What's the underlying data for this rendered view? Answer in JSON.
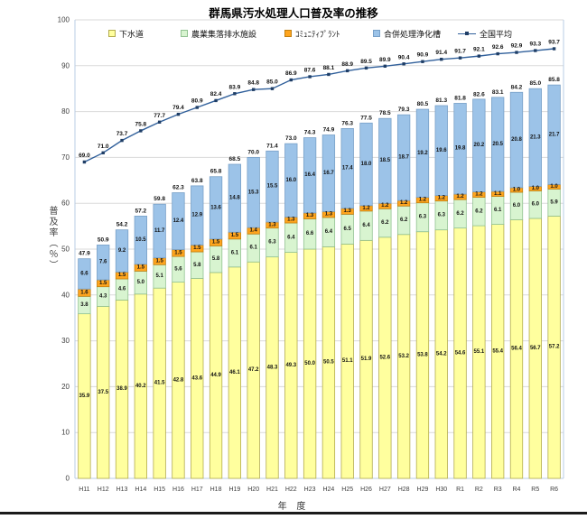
{
  "title": "群馬県汚水処理人口普及率の推移",
  "y_axis": {
    "title": "普及率（％）",
    "ticks": [
      0,
      10,
      20,
      30,
      40,
      50,
      60,
      70,
      80,
      90,
      100
    ]
  },
  "x_axis": {
    "title": "年 度"
  },
  "colors": {
    "grid": "#DADADA",
    "axis": "#B8CCE4",
    "label": "#111111",
    "tick_text": "#404040"
  },
  "chart_data": {
    "type": "bar",
    "subtype": "stacked-bars-with-line",
    "title": "群馬県汚水処理人口普及率の推移",
    "xlabel": "年 度",
    "ylabel": "普及率（％）",
    "ylim": [
      0,
      100
    ],
    "ytick_step": 10,
    "grid": true,
    "legend_position": "top",
    "categories": [
      "H11",
      "H12",
      "H13",
      "H14",
      "H15",
      "H16",
      "H17",
      "H18",
      "H19",
      "H20",
      "H21",
      "H22",
      "H23",
      "H24",
      "H25",
      "H26",
      "H27",
      "H28",
      "H29",
      "H30",
      "R1",
      "R2",
      "R3",
      "R4",
      "R5",
      "R6"
    ],
    "series": [
      {
        "id": "sewerage",
        "name": "下水道",
        "kind": "bar",
        "fill": "#FFFF9E",
        "border": "#B3AC4E",
        "values": [
          35.9,
          37.5,
          38.9,
          40.2,
          41.5,
          42.8,
          43.6,
          44.9,
          46.1,
          47.2,
          48.3,
          49.3,
          50.0,
          50.5,
          51.1,
          51.9,
          52.6,
          53.2,
          53.8,
          54.2,
          54.6,
          55.1,
          55.4,
          56.4,
          56.7,
          57.2
        ]
      },
      {
        "id": "agri-drainage",
        "name": "農業集落排水施設",
        "kind": "bar",
        "fill": "#D8F4D0",
        "border": "#92C292",
        "values": [
          3.8,
          4.3,
          4.6,
          5.0,
          5.1,
          5.6,
          5.8,
          5.8,
          6.1,
          6.1,
          6.3,
          6.4,
          6.6,
          6.4,
          6.5,
          6.4,
          6.2,
          6.2,
          6.3,
          6.3,
          6.2,
          6.2,
          6.1,
          6.0,
          6.0,
          5.9
        ]
      },
      {
        "id": "community-plant",
        "name": "ｺﾐｭﾆﾃｨﾌﾟﾗﾝﾄ",
        "kind": "bar",
        "fill": "#FFA51E",
        "border": "#C07F12",
        "values": [
          1.6,
          1.5,
          1.5,
          1.5,
          1.5,
          1.5,
          1.5,
          1.5,
          1.5,
          1.4,
          1.3,
          1.3,
          1.3,
          1.3,
          1.3,
          1.2,
          1.2,
          1.2,
          1.2,
          1.2,
          1.2,
          1.2,
          1.1,
          1.0,
          1.0,
          1.0
        ]
      },
      {
        "id": "johkasou",
        "name": "合併処理浄化槽",
        "kind": "bar",
        "fill": "#9CC3E8",
        "border": "#78A0C8",
        "values": [
          6.6,
          7.6,
          9.2,
          10.5,
          11.7,
          12.4,
          12.9,
          13.6,
          14.8,
          15.3,
          15.5,
          16.0,
          16.4,
          16.7,
          17.4,
          18.0,
          18.5,
          18.7,
          19.2,
          19.6,
          19.8,
          20.2,
          20.5,
          20.8,
          21.3,
          21.7
        ]
      },
      {
        "id": "national-average",
        "name": "全国平均",
        "kind": "line",
        "color": "#31609B",
        "marker": "#1F3E66",
        "values": [
          69.0,
          71.0,
          73.7,
          75.8,
          77.7,
          79.4,
          80.9,
          82.4,
          83.9,
          84.8,
          85.0,
          86.9,
          87.6,
          88.1,
          88.9,
          89.5,
          89.9,
          90.4,
          90.9,
          91.4,
          91.7,
          92.1,
          92.6,
          92.9,
          93.3,
          93.7
        ]
      }
    ],
    "totals": [
      47.9,
      50.9,
      54.2,
      57.2,
      59.8,
      62.3,
      63.8,
      65.8,
      68.5,
      70.0,
      71.4,
      73.0,
      74.3,
      74.9,
      76.3,
      77.5,
      78.5,
      79.3,
      80.5,
      81.3,
      81.8,
      82.6,
      83.1,
      84.2,
      85.0,
      85.8
    ]
  }
}
